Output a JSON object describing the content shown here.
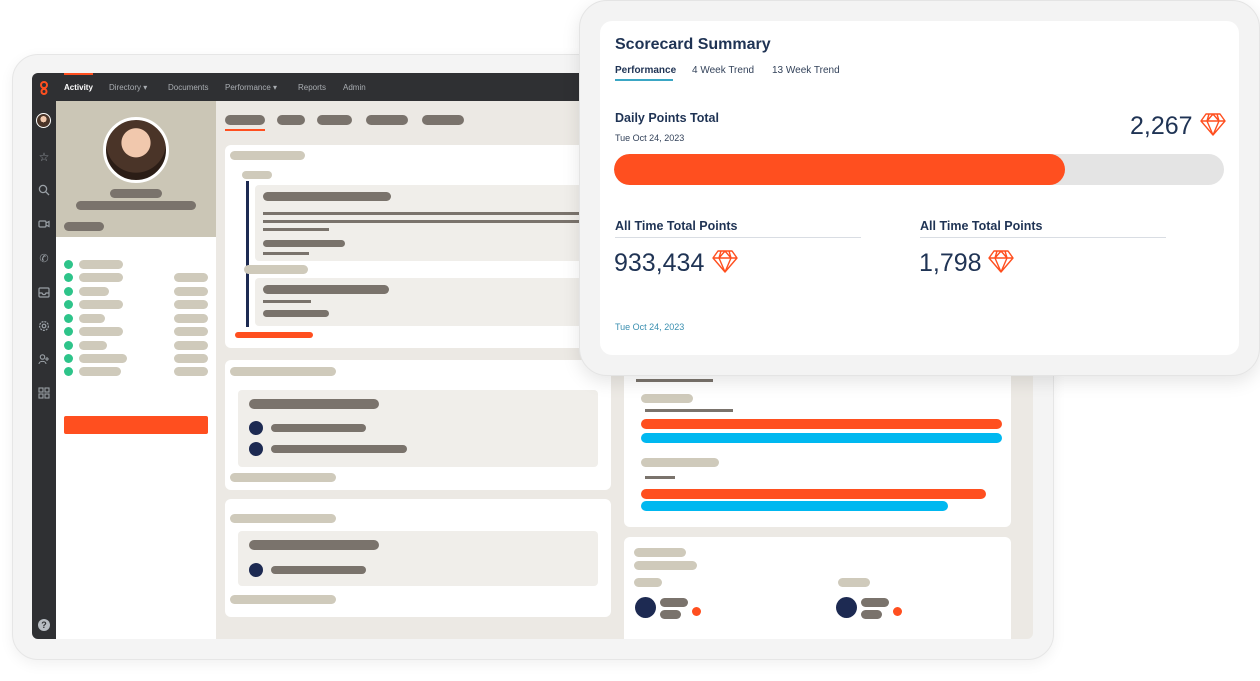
{
  "nav": {
    "items": [
      {
        "label": "Activity",
        "active": true
      },
      {
        "label": "Directory ▾",
        "active": false
      },
      {
        "label": "Documents",
        "active": false
      },
      {
        "label": "Performance ▾",
        "active": false
      },
      {
        "label": "Reports",
        "active": false
      },
      {
        "label": "Admin",
        "active": false
      }
    ]
  },
  "rail_icons": [
    "avatar-icon",
    "star-icon",
    "search-icon",
    "video-icon",
    "phone-icon",
    "inbox-icon",
    "settings-icon",
    "people-icon",
    "apps-icon",
    "help-icon"
  ],
  "scorecard": {
    "title": "Scorecard Summary",
    "tabs": [
      "Performance",
      "4 Week Trend",
      "13 Week Trend"
    ],
    "daily": {
      "label": "Daily Points Total",
      "date": "Tue Oct 24, 2023",
      "value": "2,267",
      "progress": 0.74
    },
    "all_time_left": {
      "label": "All Time Total Points",
      "value": "933,434"
    },
    "all_time_right": {
      "label": "All Time Total Points",
      "value": "1,798"
    },
    "footer_date": "Tue Oct 24, 2023"
  },
  "colors": {
    "accent": "#ff4f1f",
    "secondary": "#00b8f0",
    "navy": "#1f3354",
    "status": "#2ec48a"
  }
}
